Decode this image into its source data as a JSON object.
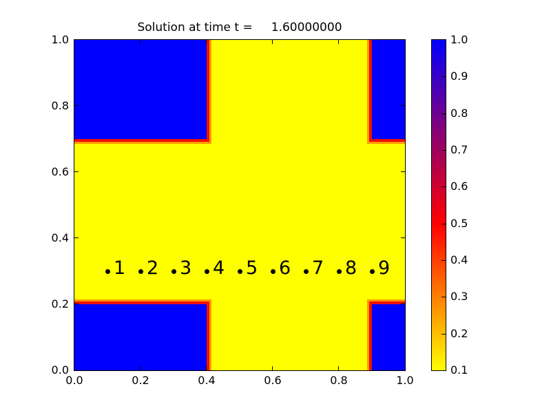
{
  "title": "Solution at time t =     1.60000000",
  "colors": {
    "background": "#ffffff",
    "frame": "#000000",
    "low_field": "#ffff00",
    "high_field": "#0000ff",
    "edge_red": "#f01000",
    "edge_orange": "#ff9900",
    "dot": "#000000",
    "text": "#000000"
  },
  "chart_data": {
    "type": "heatmap",
    "title": "Solution at time t =     1.60000000",
    "xlabel": "",
    "ylabel": "",
    "xlim": [
      0.0,
      1.0
    ],
    "ylim": [
      0.0,
      1.0
    ],
    "grid": false,
    "xticks": [
      "0.0",
      "0.2",
      "0.4",
      "0.6",
      "0.8",
      "1.0"
    ],
    "yticks": [
      "0.0",
      "0.2",
      "0.4",
      "0.6",
      "0.8",
      "1.0"
    ],
    "background_value": 0.1,
    "high_value": 1.0,
    "high_regions": [
      {
        "x0": 0.0,
        "x1": 0.4,
        "y0": 0.7,
        "y1": 1.0
      },
      {
        "x0": 0.9,
        "x1": 1.0,
        "y0": 0.7,
        "y1": 1.0
      },
      {
        "x0": 0.0,
        "x1": 0.4,
        "y0": 0.0,
        "y1": 0.2
      },
      {
        "x0": 0.9,
        "x1": 1.0,
        "y0": 0.0,
        "y1": 0.2
      }
    ],
    "points": [
      {
        "label": "1",
        "x": 0.1,
        "y": 0.3
      },
      {
        "label": "2",
        "x": 0.2,
        "y": 0.3
      },
      {
        "label": "3",
        "x": 0.3,
        "y": 0.3
      },
      {
        "label": "4",
        "x": 0.4,
        "y": 0.3
      },
      {
        "label": "5",
        "x": 0.5,
        "y": 0.3
      },
      {
        "label": "6",
        "x": 0.6,
        "y": 0.3
      },
      {
        "label": "7",
        "x": 0.7,
        "y": 0.3
      },
      {
        "label": "8",
        "x": 0.8,
        "y": 0.3
      },
      {
        "label": "9",
        "x": 0.9,
        "y": 0.3
      }
    ],
    "colorbar": {
      "vmin": 0.1,
      "vmax": 1.0,
      "ticks": [
        "1.0",
        "0.9",
        "0.8",
        "0.7",
        "0.6",
        "0.5",
        "0.4",
        "0.3",
        "0.2",
        "0.1"
      ],
      "colormap_stops": [
        {
          "value": 1.0,
          "color": "#0000ff"
        },
        {
          "value": 0.77,
          "color": "#7f0080"
        },
        {
          "value": 0.5,
          "color": "#ff0000"
        },
        {
          "value": 0.3,
          "color": "#ff8000"
        },
        {
          "value": 0.1,
          "color": "#ffff00"
        }
      ]
    }
  }
}
